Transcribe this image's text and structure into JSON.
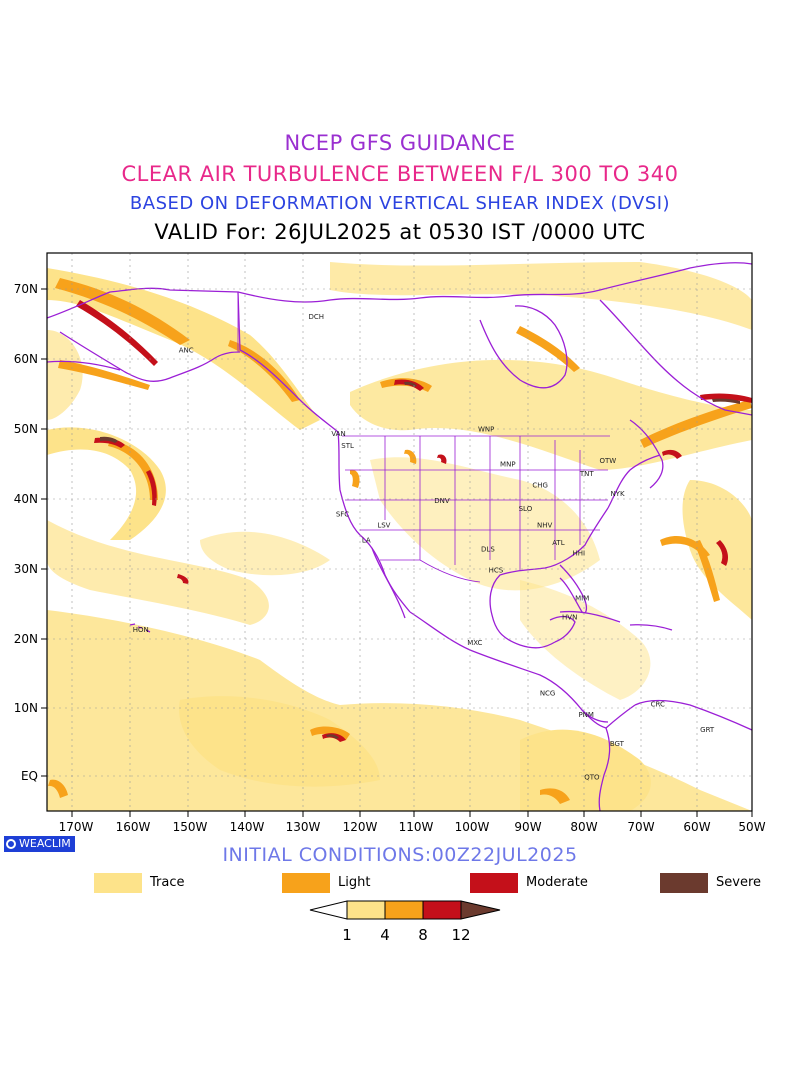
{
  "titles": {
    "line1": "NCEP GFS GUIDANCE",
    "line2": "CLEAR AIR TURBULENCE BETWEEN F/L 300 TO 340",
    "line3": "BASED ON DEFORMATION VERTICAL SHEAR INDEX (DVSI)",
    "line4": "VALID For: 26JUL2025 at 0530 IST /0000 UTC"
  },
  "colors": {
    "title1": "#9a2fd0",
    "title2": "#e8288a",
    "title3": "#2c43e0",
    "title4": "#000000",
    "trace": "#fde38a",
    "light": "#f7a21b",
    "moderate": "#c4101a",
    "severe": "#6b3a2e",
    "coastline": "#9b1fd6",
    "grid": "#999999"
  },
  "map": {
    "lat_labels": [
      "70N",
      "60N",
      "50N",
      "40N",
      "30N",
      "20N",
      "10N",
      "EQ"
    ],
    "lon_labels": [
      "170W",
      "160W",
      "150W",
      "140W",
      "130W",
      "120W",
      "110W",
      "100W",
      "90W",
      "80W",
      "70W",
      "60W",
      "50W"
    ],
    "stations": [
      {
        "code": "ANC",
        "lon": -149.9,
        "lat": 61.2
      },
      {
        "code": "DCH",
        "lon": -127.0,
        "lat": 66.0
      },
      {
        "code": "VAN",
        "lon": -123.1,
        "lat": 49.3
      },
      {
        "code": "STL",
        "lon": -121.5,
        "lat": 47.6
      },
      {
        "code": "WNP",
        "lon": -97.1,
        "lat": 49.9
      },
      {
        "code": "MNP",
        "lon": -93.3,
        "lat": 44.9
      },
      {
        "code": "TNT",
        "lon": -79.4,
        "lat": 43.6
      },
      {
        "code": "OTW",
        "lon": -75.7,
        "lat": 45.4
      },
      {
        "code": "NYK",
        "lon": -74.0,
        "lat": 40.7
      },
      {
        "code": "CHG",
        "lon": -87.6,
        "lat": 41.9
      },
      {
        "code": "DNV",
        "lon": -104.9,
        "lat": 39.7
      },
      {
        "code": "SFC",
        "lon": -122.4,
        "lat": 37.8
      },
      {
        "code": "SLO",
        "lon": -90.2,
        "lat": 38.6
      },
      {
        "code": "LSV",
        "lon": -115.1,
        "lat": 36.2
      },
      {
        "code": "NHV",
        "lon": -86.8,
        "lat": 36.2
      },
      {
        "code": "LA",
        "lon": -118.2,
        "lat": 34.1
      },
      {
        "code": "ATL",
        "lon": -84.4,
        "lat": 33.7
      },
      {
        "code": "HHI",
        "lon": -80.8,
        "lat": 32.2
      },
      {
        "code": "DLS",
        "lon": -96.8,
        "lat": 32.8
      },
      {
        "code": "HCS",
        "lon": -95.4,
        "lat": 29.8
      },
      {
        "code": "MIM",
        "lon": -80.2,
        "lat": 25.8
      },
      {
        "code": "HVN",
        "lon": -82.4,
        "lat": 23.1
      },
      {
        "code": "HON",
        "lon": -157.9,
        "lat": 21.3
      },
      {
        "code": "MXC",
        "lon": -99.1,
        "lat": 19.4
      },
      {
        "code": "NCG",
        "lon": -86.3,
        "lat": 12.1
      },
      {
        "code": "PNM",
        "lon": -79.5,
        "lat": 9.0
      },
      {
        "code": "CRC",
        "lon": -66.9,
        "lat": 10.5
      },
      {
        "code": "GRT",
        "lon": -58.2,
        "lat": 6.8
      },
      {
        "code": "BGT",
        "lon": -74.1,
        "lat": 4.7
      },
      {
        "code": "QTO",
        "lon": -78.5,
        "lat": -0.2
      }
    ]
  },
  "badge": {
    "label": "WEACLIM"
  },
  "initial_conditions": "INITIAL CONDITIONS:00Z22JUL2025",
  "legend": {
    "categories": [
      {
        "label": "Trace",
        "color": "#fde38a"
      },
      {
        "label": "Light",
        "color": "#f7a21b"
      },
      {
        "label": "Moderate",
        "color": "#c4101a"
      },
      {
        "label": "Severe",
        "color": "#6b3a2e"
      }
    ],
    "colorbar_ticks": [
      "1",
      "4",
      "8",
      "12"
    ]
  }
}
